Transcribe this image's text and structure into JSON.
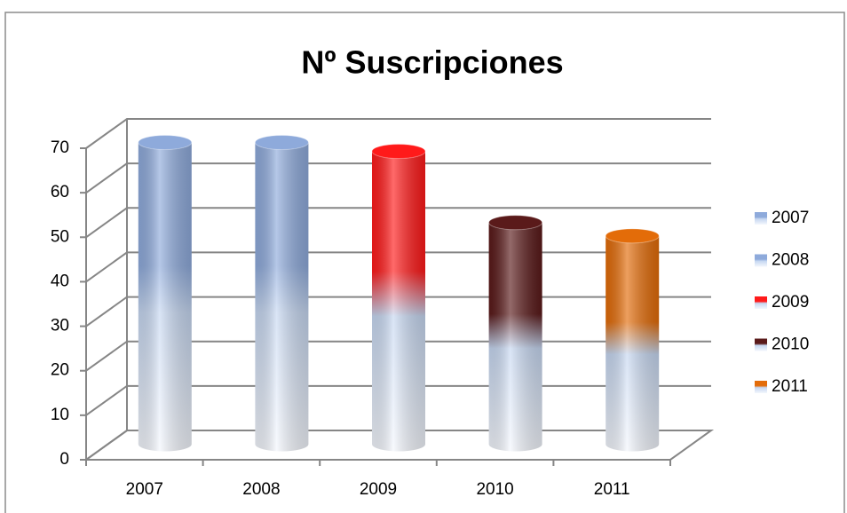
{
  "chart_data": {
    "type": "bar3d",
    "title": "Nº Suscripciones",
    "categories": [
      "2007",
      "2008",
      "2009",
      "2010",
      "2011"
    ],
    "values": [
      68,
      68,
      66,
      50,
      47
    ],
    "colors": [
      "#8eaadb",
      "#8eaadb",
      "#ff1a1a",
      "#5a1a1a",
      "#e36c09"
    ],
    "ylim": [
      0,
      70
    ],
    "yticks": [
      0,
      10,
      20,
      30,
      40,
      50,
      60,
      70
    ],
    "grid": true,
    "legend": "right"
  }
}
